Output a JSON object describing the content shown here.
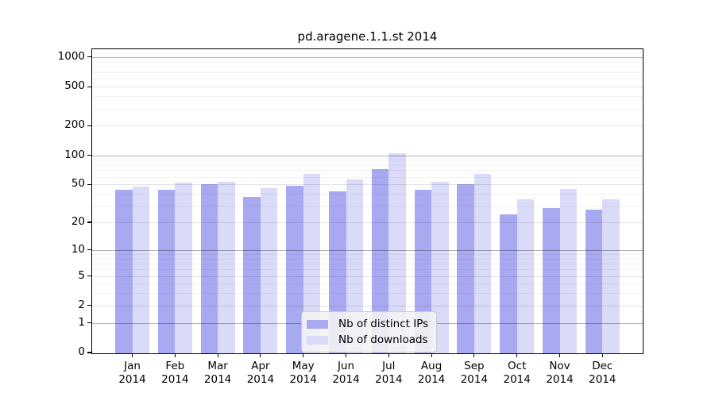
{
  "title": "pd.aragene.1.1.st 2014",
  "legend": {
    "items": [
      {
        "label": "Nb of distinct IPs",
        "color": "#a9a9f1"
      },
      {
        "label": "Nb of downloads",
        "color": "#dadaf9"
      }
    ]
  },
  "y_axis": {
    "ticks": [
      0,
      1,
      2,
      5,
      10,
      20,
      50,
      100,
      200,
      500,
      1000
    ]
  },
  "x_axis": {
    "months": [
      "Jan",
      "Feb",
      "Mar",
      "Apr",
      "May",
      "Jun",
      "Jul",
      "Aug",
      "Sep",
      "Oct",
      "Nov",
      "Dec"
    ],
    "year": "2014"
  },
  "chart_data": {
    "type": "bar",
    "title": "pd.aragene.1.1.st 2014",
    "categories": [
      "Jan 2014",
      "Feb 2014",
      "Mar 2014",
      "Apr 2014",
      "May 2014",
      "Jun 2014",
      "Jul 2014",
      "Aug 2014",
      "Sep 2014",
      "Oct 2014",
      "Nov 2014",
      "Dec 2014"
    ],
    "series": [
      {
        "name": "Nb of distinct IPs",
        "color": "#a9a9f1",
        "values": [
          45,
          45,
          51,
          38,
          49,
          43,
          74,
          45,
          51,
          25,
          29,
          28
        ]
      },
      {
        "name": "Nb of downloads",
        "color": "#dadaf9",
        "values": [
          48,
          53,
          54,
          47,
          66,
          57,
          107,
          54,
          66,
          36,
          46,
          36
        ]
      }
    ],
    "yscale": "log10(1+y)",
    "yticks": [
      0,
      1,
      2,
      5,
      10,
      20,
      50,
      100,
      200,
      500,
      1000
    ],
    "ylim": [
      0,
      1200
    ],
    "xlabel": "",
    "ylabel": "",
    "grid": "horizontal",
    "legend_position": "lower center"
  }
}
